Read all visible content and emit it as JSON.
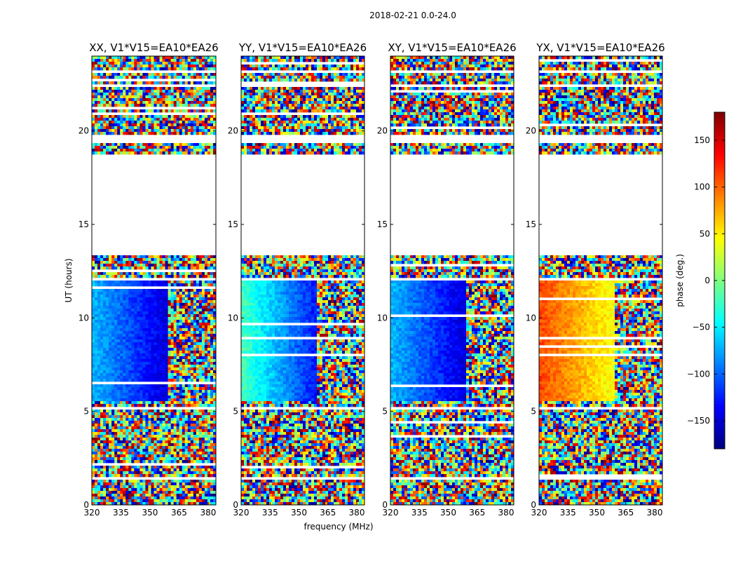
{
  "suptitle": "2018-02-21 0.0-24.0",
  "colorbar": {
    "label": "phase (deg.)",
    "ticks": [
      "150",
      "100",
      "50",
      "0",
      "−50",
      "−100",
      "−150"
    ],
    "tick_values": [
      150,
      100,
      50,
      0,
      -50,
      -100,
      -150
    ],
    "range": [
      -180,
      180
    ],
    "colormap": "jet"
  },
  "chart_data": [
    {
      "type": "heatmap",
      "title": "XX, V1*V15=EA10*EA26",
      "xlabel": "frequency (MHz)",
      "ylabel": "UT (hours)",
      "xlim": [
        320,
        384
      ],
      "ylim": [
        0,
        24
      ],
      "xticks": [
        "320",
        "335",
        "350",
        "365",
        "380"
      ],
      "xtick_values": [
        320,
        335,
        350,
        365,
        380
      ],
      "yticks": [
        "0",
        "5",
        "10",
        "15",
        "20"
      ],
      "ytick_values": [
        0,
        5,
        10,
        15,
        20
      ],
      "coherent_phase_low_freq_deg": -70,
      "coherent_phase_high_freq_deg": -150,
      "coherent_ut_range": [
        5.5,
        12.0
      ],
      "flagged_gap_ut": [
        13.4,
        18.7
      ]
    },
    {
      "type": "heatmap",
      "title": "YY, V1*V15=EA10*EA26",
      "xlabel": "frequency (MHz)",
      "ylabel": "",
      "xlim": [
        320,
        384
      ],
      "ylim": [
        0,
        24
      ],
      "xticks": [
        "320",
        "335",
        "350",
        "365",
        "380"
      ],
      "xtick_values": [
        320,
        335,
        350,
        365,
        380
      ],
      "yticks": [
        "0",
        "5",
        "10",
        "15",
        "20"
      ],
      "ytick_values": [
        0,
        5,
        10,
        15,
        20
      ],
      "coherent_phase_low_freq_deg": -20,
      "coherent_phase_high_freq_deg": -130,
      "coherent_ut_range": [
        5.5,
        12.0
      ],
      "flagged_gap_ut": [
        13.4,
        18.7
      ]
    },
    {
      "type": "heatmap",
      "title": "XY, V1*V15=EA10*EA26",
      "xlabel": "frequency (MHz)",
      "ylabel": "",
      "xlim": [
        320,
        384
      ],
      "ylim": [
        0,
        24
      ],
      "xticks": [
        "320",
        "335",
        "350",
        "365",
        "380"
      ],
      "xtick_values": [
        320,
        335,
        350,
        365,
        380
      ],
      "yticks": [
        "0",
        "5",
        "10",
        "15",
        "20"
      ],
      "ytick_values": [
        0,
        5,
        10,
        15,
        20
      ],
      "coherent_phase_low_freq_deg": -70,
      "coherent_phase_high_freq_deg": -150,
      "coherent_ut_range": [
        5.5,
        12.0
      ],
      "flagged_gap_ut": [
        13.4,
        18.7
      ]
    },
    {
      "type": "heatmap",
      "title": "YX, V1*V15=EA10*EA26",
      "xlabel": "",
      "ylabel": "",
      "xlim": [
        320,
        384
      ],
      "ylim": [
        0,
        24
      ],
      "xticks": [
        "320",
        "335",
        "350",
        "365",
        "380"
      ],
      "xtick_values": [
        320,
        335,
        350,
        365,
        380
      ],
      "yticks": [
        "0",
        "5",
        "10",
        "15",
        "20"
      ],
      "ytick_values": [
        0,
        5,
        10,
        15,
        20
      ],
      "coherent_phase_low_freq_deg": 110,
      "coherent_phase_high_freq_deg": 40,
      "coherent_ut_range": [
        5.5,
        12.0
      ],
      "flagged_gap_ut": [
        13.4,
        18.7
      ]
    }
  ]
}
